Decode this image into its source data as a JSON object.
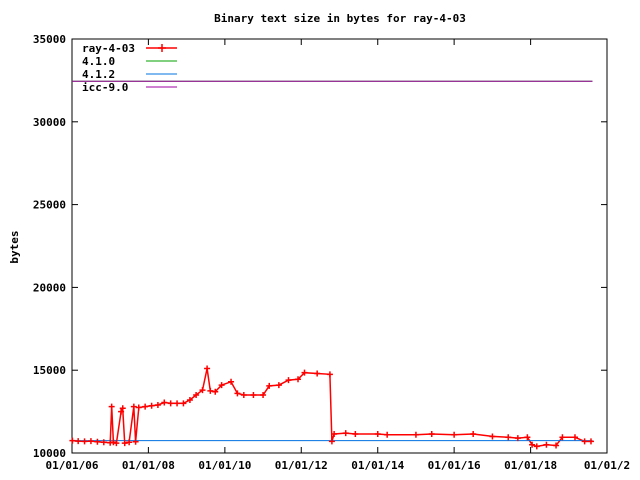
{
  "chart_data": {
    "type": "line",
    "title": "Binary text size in bytes for ray-4-03",
    "xlabel": "",
    "ylabel": "bytes",
    "ylim": [
      10000,
      35000
    ],
    "xlim": [
      "2006-01-01",
      "2020-01-01"
    ],
    "x_ticks": [
      "01/01/06",
      "01/01/08",
      "01/01/10",
      "01/01/12",
      "01/01/14",
      "01/01/16",
      "01/01/18",
      "01/01/2"
    ],
    "y_ticks": [
      "10000",
      "15000",
      "20000",
      "25000",
      "30000",
      "35000"
    ],
    "grid": false,
    "legend_position": "top-left",
    "series": [
      {
        "name": "ray-4-03",
        "color": "#ff0000",
        "marker": "plus",
        "points": [
          [
            "2006-01-05",
            10750
          ],
          [
            "2006-03-01",
            10720
          ],
          [
            "2006-05-01",
            10700
          ],
          [
            "2006-07-01",
            10720
          ],
          [
            "2006-09-01",
            10680
          ],
          [
            "2006-11-01",
            10650
          ],
          [
            "2007-01-01",
            10620
          ],
          [
            "2007-01-15",
            12800
          ],
          [
            "2007-02-01",
            10650
          ],
          [
            "2007-03-01",
            10600
          ],
          [
            "2007-04-15",
            12500
          ],
          [
            "2007-05-01",
            12700
          ],
          [
            "2007-05-20",
            10600
          ],
          [
            "2007-07-01",
            10650
          ],
          [
            "2007-08-15",
            12800
          ],
          [
            "2007-09-01",
            10680
          ],
          [
            "2007-10-01",
            12750
          ],
          [
            "2007-12-01",
            12800
          ],
          [
            "2008-02-01",
            12850
          ],
          [
            "2008-04-01",
            12900
          ],
          [
            "2008-06-01",
            13050
          ],
          [
            "2008-08-01",
            13000
          ],
          [
            "2008-10-01",
            13000
          ],
          [
            "2008-12-01",
            13000
          ],
          [
            "2009-02-01",
            13200
          ],
          [
            "2009-04-01",
            13500
          ],
          [
            "2009-06-01",
            13800
          ],
          [
            "2009-07-15",
            15100
          ],
          [
            "2009-08-15",
            13750
          ],
          [
            "2009-10-01",
            13700
          ],
          [
            "2009-12-01",
            14100
          ],
          [
            "2010-03-01",
            14300
          ],
          [
            "2010-05-01",
            13600
          ],
          [
            "2010-07-01",
            13500
          ],
          [
            "2010-10-01",
            13500
          ],
          [
            "2011-01-01",
            13500
          ],
          [
            "2011-03-01",
            14050
          ],
          [
            "2011-06-01",
            14100
          ],
          [
            "2011-09-01",
            14400
          ],
          [
            "2011-12-01",
            14450
          ],
          [
            "2012-02-01",
            14850
          ],
          [
            "2012-06-01",
            14800
          ],
          [
            "2012-10-01",
            14750
          ],
          [
            "2012-10-20",
            10700
          ],
          [
            "2012-11-10",
            11150
          ],
          [
            "2013-03-01",
            11200
          ],
          [
            "2013-06-01",
            11150
          ],
          [
            "2014-01-01",
            11150
          ],
          [
            "2014-04-01",
            11100
          ],
          [
            "2015-01-01",
            11100
          ],
          [
            "2015-06-01",
            11150
          ],
          [
            "2016-01-01",
            11100
          ],
          [
            "2016-07-01",
            11150
          ],
          [
            "2017-01-01",
            11000
          ],
          [
            "2017-06-01",
            10950
          ],
          [
            "2017-09-01",
            10900
          ],
          [
            "2017-12-01",
            10950
          ],
          [
            "2018-01-15",
            10500
          ],
          [
            "2018-03-01",
            10400
          ],
          [
            "2018-06-01",
            10500
          ],
          [
            "2018-09-01",
            10450
          ],
          [
            "2018-11-01",
            10950
          ],
          [
            "2019-03-01",
            10950
          ],
          [
            "2019-06-01",
            10700
          ],
          [
            "2019-08-01",
            10700
          ]
        ]
      },
      {
        "name": "4.1.0",
        "color": "#00a000",
        "value": 32450,
        "from": "2006-01-01",
        "to": "2019-08-15"
      },
      {
        "name": "4.1.2",
        "color": "#0070e0",
        "value": 10750,
        "from": "2006-01-01",
        "to": "2019-08-15"
      },
      {
        "name": "icc-9.0",
        "color": "#a000a0",
        "value": 32450,
        "from": "2006-01-01",
        "to": "2019-08-15"
      }
    ]
  }
}
